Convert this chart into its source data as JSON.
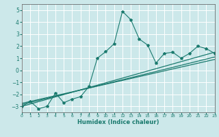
{
  "xlabel": "Humidex (Indice chaleur)",
  "bg_color": "#cce8ea",
  "grid_color": "#ffffff",
  "line_color": "#1a7a6e",
  "xlim": [
    0,
    23
  ],
  "ylim": [
    -3.5,
    5.5
  ],
  "yticks": [
    -3,
    -2,
    -1,
    0,
    1,
    2,
    3,
    4,
    5
  ],
  "xticks": [
    0,
    1,
    2,
    3,
    4,
    5,
    6,
    7,
    8,
    9,
    10,
    11,
    12,
    13,
    14,
    15,
    16,
    17,
    18,
    19,
    20,
    21,
    22,
    23
  ],
  "scatter_line": [
    [
      0,
      -3.0
    ],
    [
      1,
      -2.6
    ],
    [
      2,
      -3.2
    ],
    [
      3,
      -3.0
    ],
    [
      4,
      -1.9
    ],
    [
      5,
      -2.7
    ],
    [
      6,
      -2.4
    ],
    [
      7,
      -2.2
    ],
    [
      8,
      -1.35
    ],
    [
      9,
      1.0
    ],
    [
      10,
      1.55
    ],
    [
      11,
      2.2
    ],
    [
      12,
      4.9
    ],
    [
      13,
      4.2
    ],
    [
      14,
      2.6
    ],
    [
      15,
      2.1
    ],
    [
      16,
      0.6
    ],
    [
      17,
      1.4
    ],
    [
      18,
      1.5
    ],
    [
      19,
      1.0
    ],
    [
      20,
      1.4
    ],
    [
      21,
      2.0
    ],
    [
      22,
      1.8
    ],
    [
      23,
      1.4
    ]
  ],
  "regression_lines": [
    [
      [
        0,
        -3.0
      ],
      [
        23,
        1.5
      ]
    ],
    [
      [
        0,
        -2.85
      ],
      [
        23,
        1.1
      ]
    ],
    [
      [
        0,
        -2.75
      ],
      [
        23,
        0.9
      ]
    ]
  ]
}
